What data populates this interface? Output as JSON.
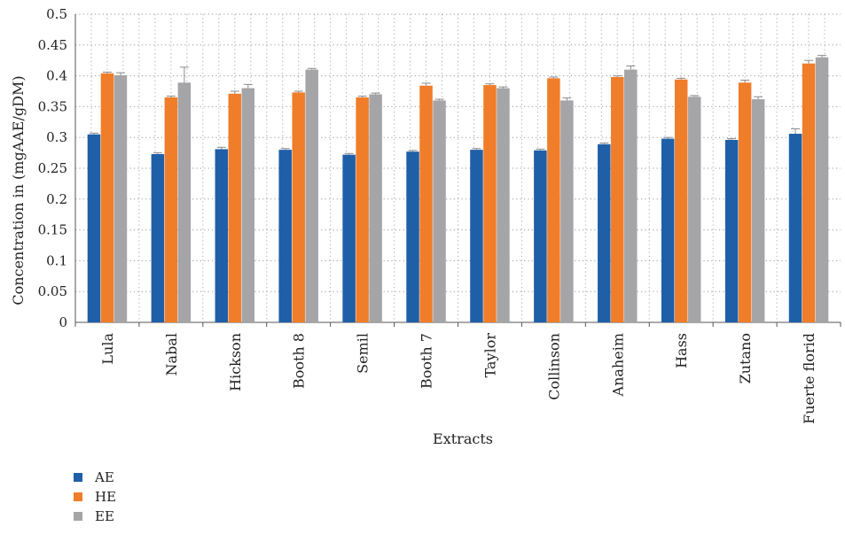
{
  "chart_data": {
    "type": "bar",
    "title": "",
    "xlabel": "Extracts",
    "ylabel": "Concentration in (mgAAE/gDM)",
    "ylim": [
      0,
      0.5
    ],
    "yticks": [
      "0",
      "0.05",
      "0.1",
      "0.15",
      "0.2",
      "0.25",
      "0.3",
      "0.35",
      "0.4",
      "0.45",
      "0.5"
    ],
    "grid": "dotted",
    "legend_position": "bottom-left",
    "categories": [
      "Lula",
      "Nabal",
      "Hickson",
      "Booth 8",
      "Semil",
      "Booth 7",
      "Taylor",
      "Collinson",
      "Anaheim",
      "Hass",
      "Zutano",
      "Fuerte florid"
    ],
    "series": [
      {
        "name": "AE",
        "color": "#1f5fa8",
        "values": [
          0.305,
          0.273,
          0.281,
          0.28,
          0.272,
          0.277,
          0.28,
          0.279,
          0.289,
          0.298,
          0.296,
          0.306
        ],
        "errors": [
          0.002,
          0.002,
          0.003,
          0.002,
          0.002,
          0.002,
          0.002,
          0.002,
          0.002,
          0.002,
          0.002,
          0.008
        ]
      },
      {
        "name": "HE",
        "color": "#f07d2a",
        "values": [
          0.404,
          0.365,
          0.371,
          0.373,
          0.365,
          0.384,
          0.385,
          0.396,
          0.398,
          0.394,
          0.389,
          0.42
        ],
        "errors": [
          0.002,
          0.002,
          0.004,
          0.002,
          0.002,
          0.004,
          0.002,
          0.002,
          0.002,
          0.002,
          0.004,
          0.005
        ]
      },
      {
        "name": "EE",
        "color": "#a5a5a7",
        "values": [
          0.401,
          0.389,
          0.38,
          0.41,
          0.37,
          0.36,
          0.38,
          0.36,
          0.41,
          0.366,
          0.362,
          0.43
        ],
        "errors": [
          0.004,
          0.025,
          0.006,
          0.002,
          0.002,
          0.002,
          0.002,
          0.004,
          0.006,
          0.002,
          0.004,
          0.003
        ]
      }
    ]
  }
}
